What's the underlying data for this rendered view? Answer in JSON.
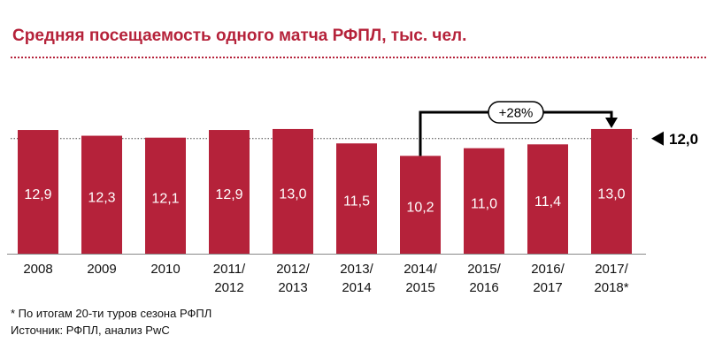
{
  "title": "Средняя посещаемость одного матча РФПЛ, тыс. чел.",
  "footnotes": [
    "* По итогам 20-ти туров сезона РФПЛ",
    "Источник: РФПЛ, анализ PwC"
  ],
  "colors": {
    "bar": "#b5223a",
    "accent": "#b5223a",
    "text": "#111111",
    "annotation": "#000000"
  },
  "chart_data": {
    "type": "bar",
    "title": "Средняя посещаемость одного матча РФПЛ, тыс. чел.",
    "xlabel": "",
    "ylabel": "",
    "categories": [
      [
        "2008"
      ],
      [
        "2009"
      ],
      [
        "2010"
      ],
      [
        "2011/",
        "2012"
      ],
      [
        "2012/",
        "2013"
      ],
      [
        "2013/",
        "2014"
      ],
      [
        "2014/",
        "2015"
      ],
      [
        "2015/",
        "2016"
      ],
      [
        "2016/",
        "2017"
      ],
      [
        "2017/",
        "2018*"
      ]
    ],
    "values": [
      12.9,
      12.3,
      12.1,
      12.9,
      13.0,
      11.5,
      10.2,
      11.0,
      11.4,
      13.0
    ],
    "value_labels": [
      "12,9",
      "12,3",
      "12,1",
      "12,9",
      "13,0",
      "11,5",
      "10,2",
      "11,0",
      "11,4",
      "13,0"
    ],
    "reference_line": {
      "value": 12.0,
      "label": "12,0"
    },
    "annotation": {
      "label": "+28%",
      "from_index": 6,
      "to_index": 9
    },
    "grid": false,
    "legend": "none"
  }
}
